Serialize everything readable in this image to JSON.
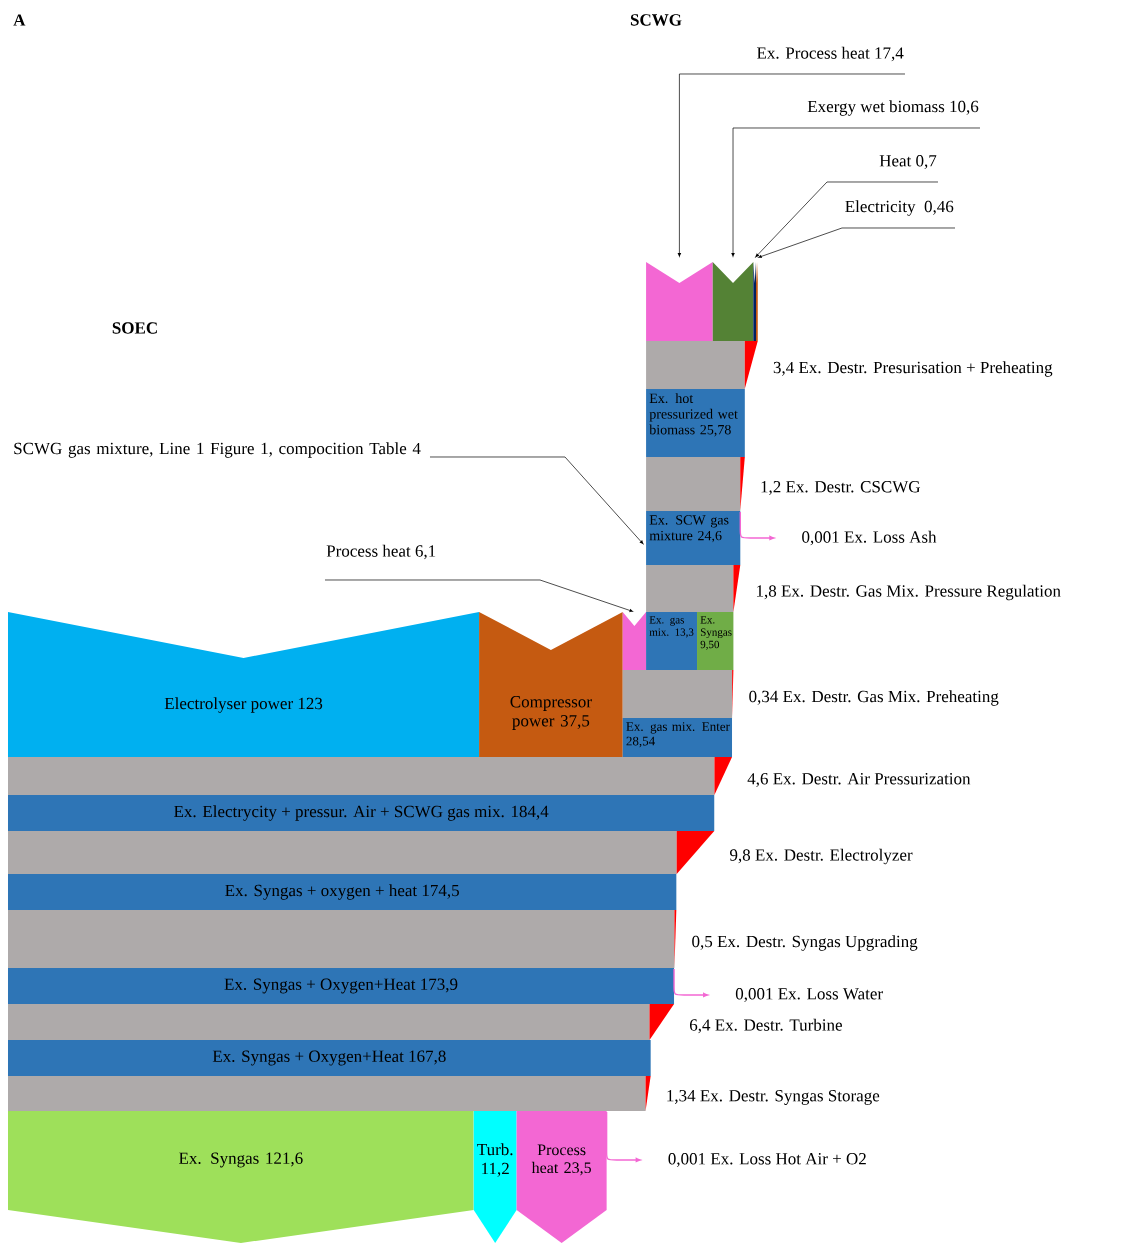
{
  "chart_data": {
    "type": "other",
    "title": "A",
    "annotations": [
      "SCWG",
      "SOEC",
      "SCWG gas mixture,  Line 1 Figure 1, compocition Table 4"
    ],
    "categories": [
      "Ex. Process heat",
      "Exergy wet biomass",
      "Heat",
      "Electricity ",
      "Ex. Destr. Presurisation + Preheating",
      "Ex. hot pressurized wet biomass",
      "Ex. Destr. CSCWG",
      "Ex. Loss Ash",
      "Ex. SCW gas mixture",
      "Ex. Destr. Gas Mix. Pressure Regulation",
      "Ex. gas mix.",
      "Ex. Syngas",
      "Process heat",
      "Ex. Destr. Gas Mix. Preheating",
      "Ex. gas mix. Enter",
      "Electrolyser power",
      "Compressor power",
      "Ex. Destr. Air Pressurization",
      "Ex. Electrycity + pressur. Air + SCWG gas mix.",
      "Ex. Destr. Electrolyzer",
      "Ex. Syngas + oxygen + heat",
      "Ex. Destr. Syngas Upgrading",
      "Ex. Loss Water",
      "Ex. Syngas + Oxygen+Heat",
      "Ex. Destr. Turbine",
      "Ex. Syngas + Oxygen+Heat",
      "Ex. Destr. Syngas  Storage",
      "Ex. Loss Hot Air + O2",
      "Ex. Syngas",
      "Turb.",
      "Process heat"
    ],
    "values": [
      17.4,
      10.6,
      0.7,
      0.46,
      3.4,
      25.78,
      1.2,
      0.001,
      24.6,
      1.8,
      13.3,
      9.5,
      6.1,
      0.34,
      28.54,
      123,
      37.5,
      4.6,
      184.4,
      9.8,
      174.5,
      0.5,
      0.001,
      173.9,
      6.4,
      167.8,
      1.34,
      0.001,
      121.6,
      11.2,
      23.5
    ],
    "value_labels": [
      "17,4",
      "10,6",
      "0,7",
      "0,46",
      "3,4",
      "25,78",
      "1,2",
      "0,001",
      "24,6",
      "1,8",
      "13,3",
      "9,50",
      "6,1",
      "0,34",
      "28,54",
      "123",
      "37,5",
      "4,6",
      "184,4",
      "9,8",
      "174,5",
      "0,5",
      "0,001",
      "173,9",
      "6,4",
      "167,8",
      "1,34",
      "0,001",
      "121,6",
      "11,2",
      "23,5"
    ],
    "colors": [
      "#f367d3",
      "#548235",
      "#002060",
      "#c55a11",
      "#ff0000",
      "#2e75b6",
      "#ff0000",
      "#f367d3",
      "#2e75b6",
      "#ff0000",
      "#2e75b6",
      "#70ad47",
      "#f367d3",
      "#ff0000",
      "#2e75b6",
      "#00b0f0",
      "#c55a11",
      "#ff0000",
      "#2e75b6",
      "#ff0000",
      "#2e75b6",
      "#ff0000",
      "#f367d3",
      "#2e75b6",
      "#ff0000",
      "#2e75b6",
      "#ff0000",
      "#f367d3",
      "#9ee05a",
      "#00ffff",
      "#f367d3"
    ]
  }
}
